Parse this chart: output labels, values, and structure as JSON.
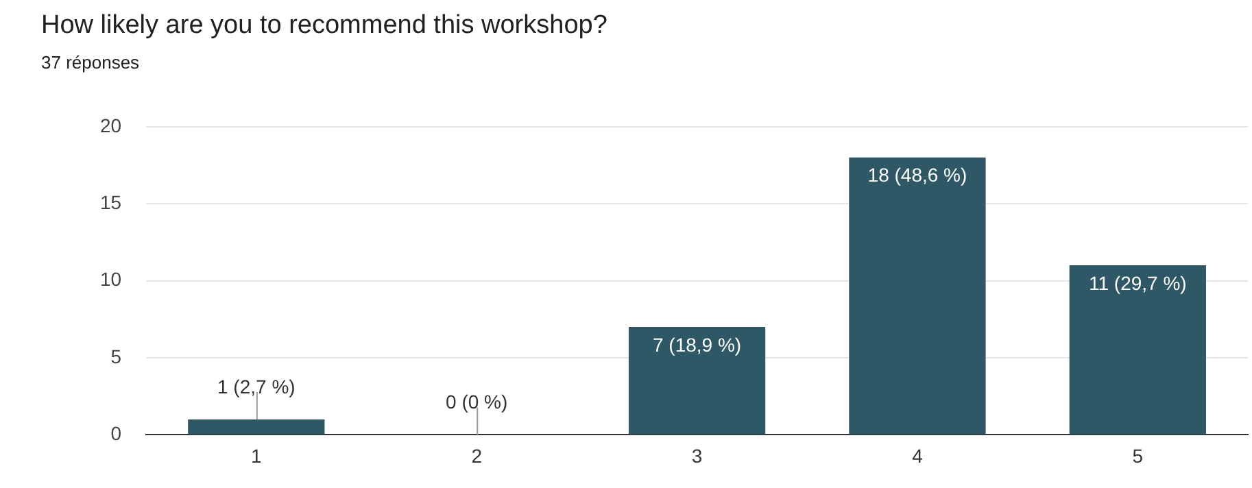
{
  "chart_data": {
    "type": "bar",
    "title": "How likely are you to recommend this workshop?",
    "subtitle": "37 réponses",
    "categories": [
      "1",
      "2",
      "3",
      "4",
      "5"
    ],
    "values": [
      1,
      0,
      7,
      18,
      11
    ],
    "value_labels": [
      "1 (2,7 %)",
      "0 (0 %)",
      "7 (18,9 %)",
      "18 (48,6 %)",
      "11 (29,7 %)"
    ],
    "color": "#2f5866",
    "ylim": [
      0,
      20
    ],
    "yticks": [
      0,
      5,
      10,
      15,
      20
    ],
    "grid": "y",
    "legend": false
  }
}
